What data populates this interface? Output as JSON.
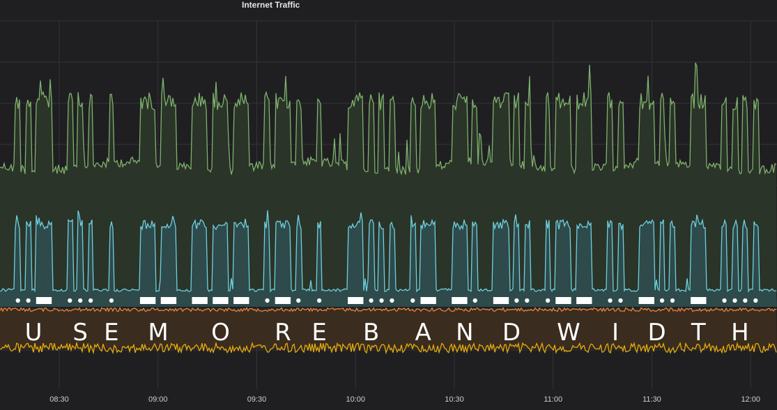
{
  "panel": {
    "title": "Internet Traffic"
  },
  "chart_data": {
    "type": "line",
    "title": "Internet Traffic",
    "xlabel": "",
    "ylabel": "",
    "x_ticks": [
      "08:30",
      "09:00",
      "09:30",
      "10:00",
      "10:30",
      "11:00",
      "11:30",
      "12:00"
    ],
    "x_tick_minutes": [
      510,
      540,
      570,
      600,
      630,
      660,
      690,
      720
    ],
    "x_range_minutes": [
      492,
      728
    ],
    "grid": true,
    "series": [
      {
        "color": "#7eb26d",
        "fill": "#2b3428",
        "kind": "upper",
        "baseline_level": 0.2,
        "peak_level": 0.72
      },
      {
        "color": "#6ed0e0",
        "fill": "#2e4a4a",
        "kind": "middle",
        "baseline_level": 0.05,
        "peak_level": 0.72
      },
      {
        "color": "#ef843c",
        "fill": "#3a2c1e",
        "kind": "flat",
        "level": 0.5
      },
      {
        "color": "#e5ac0e",
        "fill": "",
        "kind": "flat",
        "level": 0.5
      }
    ],
    "morse_code": {
      "text": "USE MORE BANDWIDTH",
      "letters": [
        "U",
        "S",
        "E",
        "M",
        "O",
        "R",
        "E",
        "B",
        "A",
        "N",
        "D",
        "W",
        "I",
        "D",
        "T",
        "H"
      ],
      "codes": [
        "..-",
        "...",
        ".",
        "--",
        "---",
        ".-.",
        ".",
        "-...",
        ".-",
        "-.",
        "-..",
        ".--",
        "..",
        "-..",
        "-",
        "...."
      ]
    },
    "overlay_colors": {
      "text": "#ffffff",
      "symbols": "#ffffff"
    }
  }
}
